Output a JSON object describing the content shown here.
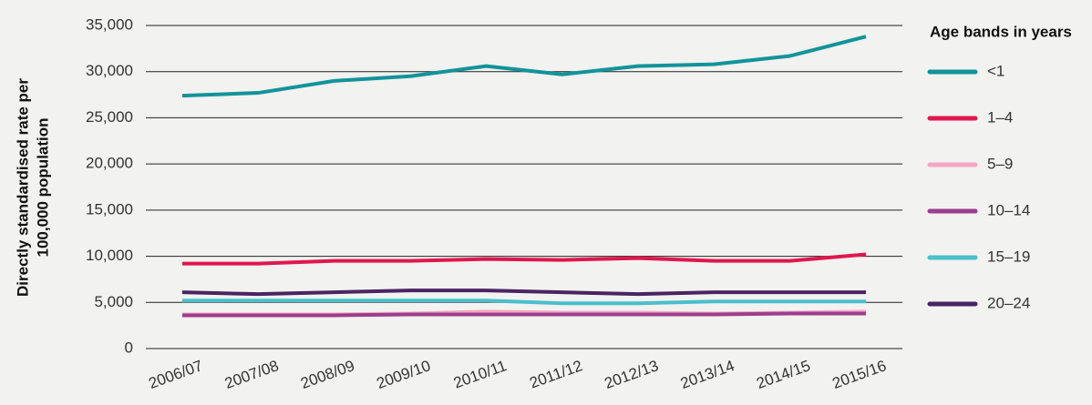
{
  "chart_data": {
    "type": "line",
    "ylabel": [
      "Directly standardised rate per",
      "100,000 population"
    ],
    "legend_title": "Age bands in years",
    "legend_position": "right",
    "grid": true,
    "categories": [
      "2006/07",
      "2007/08",
      "2008/09",
      "2009/10",
      "2010/11",
      "2011/12",
      "2012/13",
      "2013/14",
      "2014/15",
      "2015/16"
    ],
    "ylim": [
      0,
      35000
    ],
    "yticks": [
      0,
      {
        "value": 5000,
        "label": "5,000"
      },
      {
        "value": 10000,
        "label": "10,000"
      },
      {
        "value": 15000,
        "label": "15,000"
      },
      {
        "value": 20000,
        "label": "20,000"
      },
      {
        "value": 25000,
        "label": "25,000"
      },
      {
        "value": 30000,
        "label": "30,000"
      },
      {
        "value": 35000,
        "label": "35,000"
      }
    ],
    "series": [
      {
        "name": "<1",
        "color": "#12939a",
        "values": [
          27400,
          27700,
          29000,
          29500,
          30600,
          29700,
          30600,
          30800,
          31700,
          33800
        ]
      },
      {
        "name": "1–4",
        "color": "#e0174e",
        "values": [
          9200,
          9200,
          9500,
          9500,
          9700,
          9600,
          9800,
          9500,
          9500,
          10200
        ]
      },
      {
        "name": "5–9",
        "color": "#f4a6c3",
        "values": [
          3700,
          3700,
          3700,
          3800,
          4000,
          3900,
          3900,
          3800,
          3900,
          4000
        ]
      },
      {
        "name": "10–14",
        "color": "#9c3e8e",
        "values": [
          3600,
          3600,
          3600,
          3700,
          3700,
          3700,
          3700,
          3700,
          3800,
          3800
        ]
      },
      {
        "name": "15–19",
        "color": "#4bbfcb",
        "values": [
          5200,
          5200,
          5200,
          5200,
          5200,
          4900,
          4900,
          5100,
          5100,
          5100
        ]
      },
      {
        "name": "20–24",
        "color": "#4a2463",
        "values": [
          6100,
          5900,
          6100,
          6300,
          6300,
          6100,
          5900,
          6100,
          6100,
          6100
        ]
      }
    ]
  }
}
